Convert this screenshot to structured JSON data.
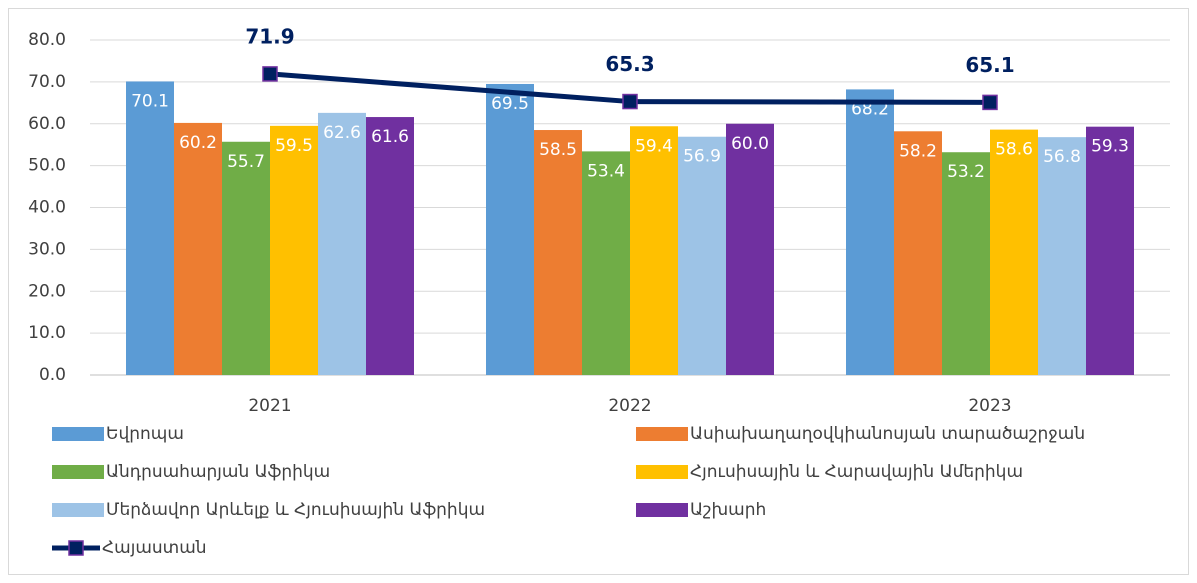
{
  "chart_data": {
    "type": "bar",
    "categories": [
      "2021",
      "2022",
      "2023"
    ],
    "series": [
      {
        "name": "Եվրոպա",
        "color": "#5b9bd5",
        "values": [
          70.1,
          69.5,
          68.2
        ],
        "value_labels": [
          "70.1",
          "69.5",
          "68.2"
        ]
      },
      {
        "name": "Ասիախաղաղօվկիանոսյան տարածաշրջան",
        "color": "#ed7d31",
        "values": [
          60.2,
          58.5,
          58.2
        ],
        "value_labels": [
          "60.2",
          "58.5",
          "58.2"
        ]
      },
      {
        "name": "Անդրսահարյան Աֆրիկա",
        "color": "#70ad47",
        "values": [
          55.7,
          53.4,
          53.2
        ],
        "value_labels": [
          "55.7",
          "53.4",
          "53.2"
        ]
      },
      {
        "name": "Հյուսիսային և Հարավային Ամերիկա",
        "color": "#ffc000",
        "values": [
          59.5,
          59.4,
          58.6
        ],
        "value_labels": [
          "59.5",
          "59.4",
          "58.6"
        ]
      },
      {
        "name": "Մերձավոր Արևելք և Հյուսիսային Աֆրիկա",
        "color": "#9dc3e6",
        "values": [
          62.6,
          56.9,
          56.8
        ],
        "value_labels": [
          "62.6",
          "56.9",
          "56.8"
        ]
      },
      {
        "name": "Աշխարհ",
        "color": "#7030a0",
        "values": [
          61.6,
          60.0,
          59.3
        ],
        "value_labels": [
          "61.6",
          "60.0",
          "59.3"
        ]
      },
      {
        "name": "Հայաստան",
        "color": "#002060",
        "type": "line",
        "values": [
          71.9,
          65.3,
          65.1
        ],
        "value_labels": [
          "71.9",
          "65.3",
          "65.1"
        ]
      }
    ],
    "ylim": [
      0,
      80
    ],
    "yticks": [
      {
        "value": 0,
        "label": "0.0"
      },
      {
        "value": 10,
        "label": "10.0"
      },
      {
        "value": 20,
        "label": "20.0"
      },
      {
        "value": 30,
        "label": "30.0"
      },
      {
        "value": 40,
        "label": "40.0"
      },
      {
        "value": 50,
        "label": "50.0"
      },
      {
        "value": 60,
        "label": "60.0"
      },
      {
        "value": 70,
        "label": "70.0"
      },
      {
        "value": 80,
        "label": "80.0"
      }
    ],
    "grid": true,
    "legend": "bottom"
  }
}
